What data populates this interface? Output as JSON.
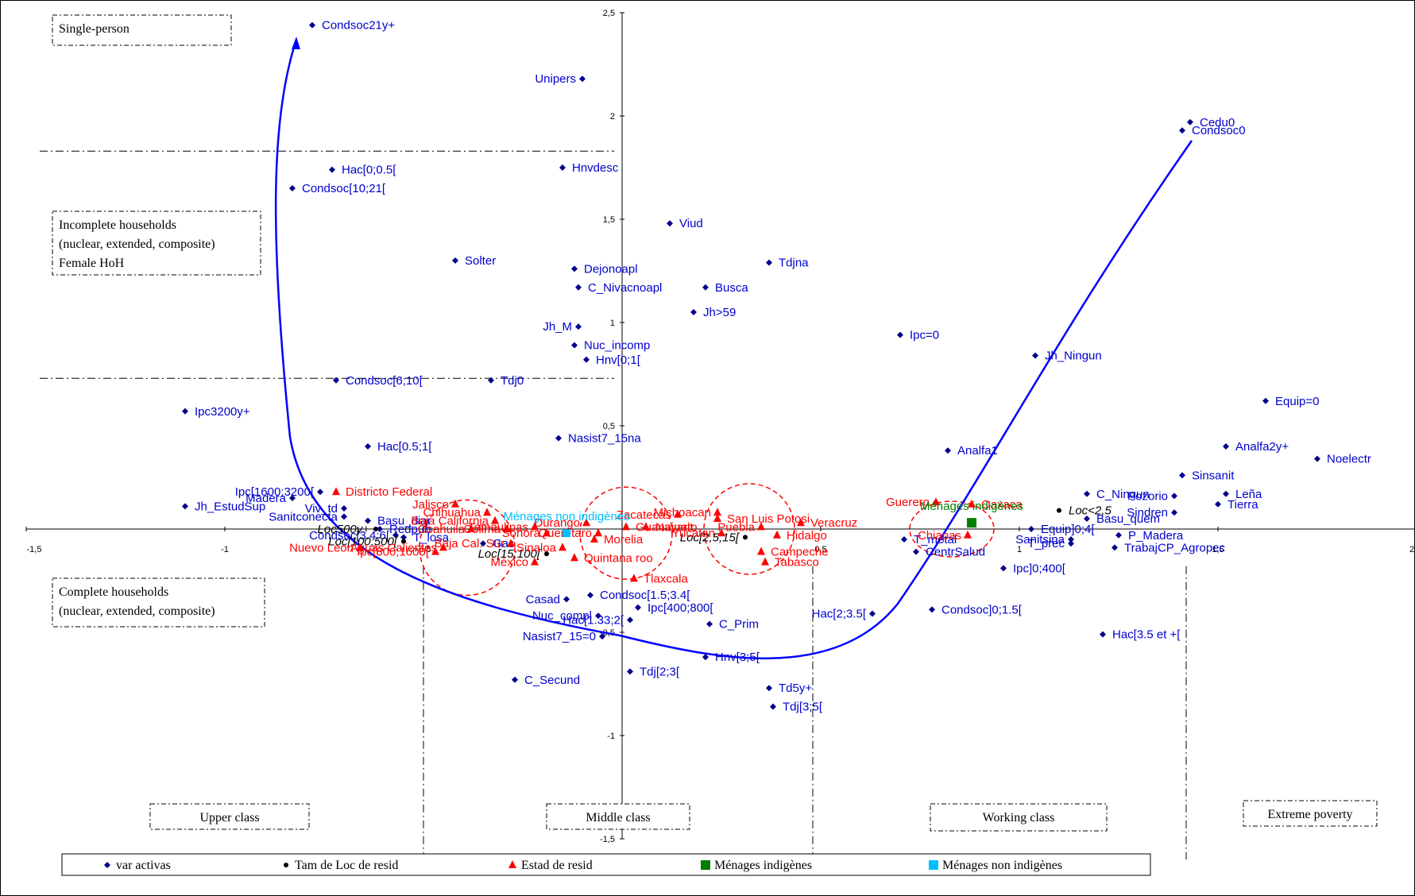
{
  "colors": {
    "var_activas": "#00008b",
    "var_text": "#0000cd",
    "estad": "#ff0000",
    "tam_loc": "#000000",
    "indigenes": "#008000",
    "non_indigenes": "#00bfff",
    "curve": "#0000ff"
  },
  "chart_data": {
    "type": "scatter",
    "xlim": [
      -1.5,
      2
    ],
    "ylim": [
      -1.5,
      2.5
    ],
    "x_ticks": [
      "-1,5",
      "-1",
      "-0,5",
      "0,5",
      "1",
      "1,5",
      "2"
    ],
    "y_ticks": [
      "-1,5",
      "-1",
      "-0,5",
      "0,5",
      "1",
      "1,5",
      "2",
      "2,5"
    ],
    "boxes": {
      "single": "Single-person",
      "incomplete": [
        "Incomplete households",
        "(nuclear, extended, composite)",
        "Female HoH"
      ],
      "complete": [
        "Complete households",
        "(nuclear, extended, composite)"
      ],
      "upper": "Upper class",
      "middle": "Middle class",
      "working": "Working class",
      "extreme": "Extreme poverty"
    },
    "legend": [
      "var activas",
      "Tam de Loc de resid",
      "Estad de resid",
      "Ménages indigènes",
      "Ménages non indigènes"
    ],
    "series": [
      {
        "name": "var activas",
        "points": [
          {
            "label": "Condsoc21y+",
            "x": -0.78,
            "y": 2.44
          },
          {
            "label": "Unipers",
            "x": -0.1,
            "y": 2.18
          },
          {
            "label": "Cedu0",
            "x": 1.43,
            "y": 1.97
          },
          {
            "label": "Condsoc0",
            "x": 1.41,
            "y": 1.93
          },
          {
            "label": "Hac[0;0.5[",
            "x": -0.73,
            "y": 1.74
          },
          {
            "label": "Hnvdesc",
            "x": -0.15,
            "y": 1.75
          },
          {
            "label": "Condsoc[10;21[",
            "x": -0.83,
            "y": 1.65
          },
          {
            "label": "Viud",
            "x": 0.12,
            "y": 1.48
          },
          {
            "label": "Solter",
            "x": -0.42,
            "y": 1.3
          },
          {
            "label": "Dejonoapl",
            "x": -0.12,
            "y": 1.26
          },
          {
            "label": "Tdjna",
            "x": 0.37,
            "y": 1.29
          },
          {
            "label": "C_Nivacnoapl",
            "x": -0.11,
            "y": 1.17
          },
          {
            "label": "Busca",
            "x": 0.21,
            "y": 1.17
          },
          {
            "label": "Jh>59",
            "x": 0.18,
            "y": 1.05
          },
          {
            "label": "Jh_M",
            "x": -0.11,
            "y": 0.98
          },
          {
            "label": "Ipc=0",
            "x": 0.7,
            "y": 0.94
          },
          {
            "label": "Nuc_incomp",
            "x": -0.12,
            "y": 0.89
          },
          {
            "label": "Hnv[0;1[",
            "x": -0.09,
            "y": 0.82
          },
          {
            "label": "Jh_Ningun",
            "x": 1.04,
            "y": 0.84
          },
          {
            "label": "Condsoc[6;10[",
            "x": -0.72,
            "y": 0.72
          },
          {
            "label": "Tdj0",
            "x": -0.33,
            "y": 0.72
          },
          {
            "label": "Equip=0",
            "x": 1.62,
            "y": 0.62
          },
          {
            "label": "Ipc3200y+",
            "x": -1.1,
            "y": 0.57
          },
          {
            "label": "Nasist7_15na",
            "x": -0.16,
            "y": 0.44
          },
          {
            "label": "Hac[0.5;1[",
            "x": -0.64,
            "y": 0.4
          },
          {
            "label": "Analfa2y+",
            "x": 1.52,
            "y": 0.4
          },
          {
            "label": "Analfa1",
            "x": 0.82,
            "y": 0.38
          },
          {
            "label": "Noelectr",
            "x": 1.75,
            "y": 0.34
          },
          {
            "label": "Sinsanit",
            "x": 1.41,
            "y": 0.26
          },
          {
            "label": "Ipc[1600;3200[",
            "x": -0.76,
            "y": 0.18
          },
          {
            "label": "Madera",
            "x": -0.83,
            "y": 0.15
          },
          {
            "label": "C_Ningun",
            "x": 1.17,
            "y": 0.17
          },
          {
            "label": "Pozorio",
            "x": 1.39,
            "y": 0.16
          },
          {
            "label": "Leña",
            "x": 1.52,
            "y": 0.17
          },
          {
            "label": "Jh_EstudSup",
            "x": -1.1,
            "y": 0.11
          },
          {
            "label": "Tierra",
            "x": 1.5,
            "y": 0.12
          },
          {
            "label": "Viv_td",
            "x": -0.7,
            "y": 0.1
          },
          {
            "label": "Sindren",
            "x": 1.39,
            "y": 0.08
          },
          {
            "label": "Sanitconecta",
            "x": -0.7,
            "y": 0.06
          },
          {
            "label": "Basu_diar",
            "x": -0.64,
            "y": 0.04
          },
          {
            "label": "Basu_quem",
            "x": 1.17,
            "y": 0.05
          },
          {
            "label": "Redpub",
            "x": -0.61,
            "y": 0.0
          },
          {
            "label": "Equip]0;4[",
            "x": 1.03,
            "y": 0.0
          },
          {
            "label": "Condsoc[3.4;6[",
            "x": -0.57,
            "y": -0.03
          },
          {
            "label": "T_losa",
            "x": -0.55,
            "y": -0.04
          },
          {
            "label": "P_Madera",
            "x": 1.25,
            "y": -0.03
          },
          {
            "label": "Gas",
            "x": -0.35,
            "y": -0.07
          },
          {
            "label": "Sanitsina",
            "x": 1.13,
            "y": -0.05
          },
          {
            "label": "T_prec",
            "x": 1.13,
            "y": -0.07
          },
          {
            "label": "T_metal",
            "x": 0.71,
            "y": -0.05
          },
          {
            "label": "TrabajCP_Agropec",
            "x": 1.24,
            "y": -0.09
          },
          {
            "label": "CentrSalud",
            "x": 0.74,
            "y": -0.11
          },
          {
            "label": "Ipc]0;400[",
            "x": 0.96,
            "y": -0.19
          },
          {
            "label": "Casad",
            "x": -0.14,
            "y": -0.34
          },
          {
            "label": "Condsoc[1.5;3.4[",
            "x": -0.08,
            "y": -0.32
          },
          {
            "label": "Ipc[400;800[",
            "x": 0.04,
            "y": -0.38
          },
          {
            "label": "Condsoc]0;1.5[",
            "x": 0.78,
            "y": -0.39
          },
          {
            "label": "Nuc_compl",
            "x": -0.06,
            "y": -0.42
          },
          {
            "label": "Hac[1.33;2[",
            "x": 0.02,
            "y": -0.44
          },
          {
            "label": "C_Prim",
            "x": 0.22,
            "y": -0.46
          },
          {
            "label": "Hac[2;3.5[",
            "x": 0.63,
            "y": -0.41
          },
          {
            "label": "Hac[3.5 et +[",
            "x": 1.21,
            "y": -0.51
          },
          {
            "label": "Nasist7_15=0",
            "x": -0.05,
            "y": -0.52
          },
          {
            "label": "Hnv[3;5[",
            "x": 0.21,
            "y": -0.62
          },
          {
            "label": "Tdj[2;3[",
            "x": 0.02,
            "y": -0.69
          },
          {
            "label": "C_Secund",
            "x": -0.27,
            "y": -0.73
          },
          {
            "label": "Td5y+",
            "x": 0.37,
            "y": -0.77
          },
          {
            "label": "Tdj[3;5[",
            "x": 0.38,
            "y": -0.86
          }
        ]
      },
      {
        "name": "Tam de Loc de resid",
        "points": [
          {
            "label": "Loc<2,5",
            "x": 1.1,
            "y": 0.09
          },
          {
            "label": "Loc[2,5;15[",
            "x": 0.31,
            "y": -0.04
          },
          {
            "label": "Loc500y+",
            "x": -0.62,
            "y": 0.0
          },
          {
            "label": "Loc[100;500[",
            "x": -0.55,
            "y": -0.06
          },
          {
            "label": "Loc[15;100[",
            "x": -0.19,
            "y": -0.12
          }
        ]
      },
      {
        "name": "Estad de resid",
        "points": [
          {
            "label": "Districto Federal",
            "x": -0.72,
            "y": 0.18
          },
          {
            "label": "Jalisco",
            "x": -0.42,
            "y": 0.12
          },
          {
            "label": "Chihuahua",
            "x": -0.34,
            "y": 0.08
          },
          {
            "label": "Baja California",
            "x": -0.32,
            "y": 0.04
          },
          {
            "label": "Coahuila",
            "x": -0.38,
            "y": 0.0
          },
          {
            "label": "Tamaulipas",
            "x": -0.22,
            "y": 0.01
          },
          {
            "label": "Colima",
            "x": -0.29,
            "y": 0.0
          },
          {
            "label": "Sonora",
            "x": -0.19,
            "y": -0.02
          },
          {
            "label": "Baja Cal. Sur",
            "x": -0.28,
            "y": -0.07
          },
          {
            "label": "Aguas Calientes",
            "x": -0.45,
            "y": -0.09
          },
          {
            "label": "Nuevo Leon",
            "x": -0.66,
            "y": -0.09
          },
          {
            "label": "Ipc[800;1600[",
            "x": -0.47,
            "y": -0.11
          },
          {
            "label": "México",
            "x": -0.22,
            "y": -0.16
          },
          {
            "label": "Durango",
            "x": -0.09,
            "y": 0.03
          },
          {
            "label": "Queretaro",
            "x": -0.06,
            "y": -0.02
          },
          {
            "label": "Guanajuato",
            "x": 0.01,
            "y": 0.01
          },
          {
            "label": "Morelia",
            "x": -0.07,
            "y": -0.05
          },
          {
            "label": "Sinaloa",
            "x": -0.15,
            "y": -0.09
          },
          {
            "label": "Quintana roo",
            "x": -0.12,
            "y": -0.14
          },
          {
            "label": "Zacatecas",
            "x": 0.14,
            "y": 0.07
          },
          {
            "label": "Nayarit",
            "x": 0.06,
            "y": 0.01
          },
          {
            "label": "Tlaxcala",
            "x": 0.03,
            "y": -0.24
          },
          {
            "label": "Michoacan",
            "x": 0.24,
            "y": 0.08
          },
          {
            "label": "San Luis Potosi",
            "x": 0.24,
            "y": 0.05
          },
          {
            "label": "Puebla",
            "x": 0.35,
            "y": 0.01
          },
          {
            "label": "Yucatan",
            "x": 0.25,
            "y": -0.02
          },
          {
            "label": "Hidalgo",
            "x": 0.39,
            "y": -0.03
          },
          {
            "label": "Veracruz",
            "x": 0.45,
            "y": 0.03
          },
          {
            "label": "Campeche",
            "x": 0.35,
            "y": -0.11
          },
          {
            "label": "Tabasco",
            "x": 0.36,
            "y": -0.16
          },
          {
            "label": "Guerero",
            "x": 0.79,
            "y": 0.13
          },
          {
            "label": "Oaxaca",
            "x": 0.88,
            "y": 0.12
          },
          {
            "label": "Chiapas",
            "x": 0.87,
            "y": -0.03
          }
        ]
      },
      {
        "name": "Ménages indigènes",
        "points": [
          {
            "label": "Ménages indigènes",
            "x": 0.88,
            "y": 0.03
          }
        ]
      },
      {
        "name": "Ménages non indigènes",
        "points": [
          {
            "label": "Ménages non indigènes",
            "x": -0.14,
            "y": -0.02
          }
        ]
      }
    ]
  }
}
